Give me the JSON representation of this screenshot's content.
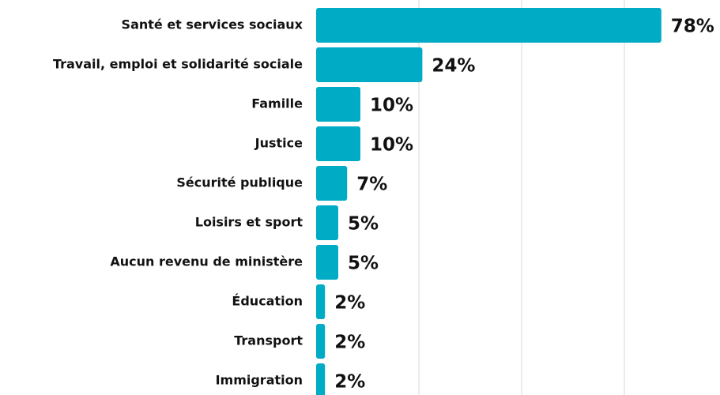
{
  "chart_data": {
    "type": "hbar",
    "categories": [
      "Santé et services sociaux",
      "Travail, emploi et solidarité sociale",
      "Famille",
      "Justice",
      "Sécurité publique",
      "Loisirs et sport",
      "Aucun revenu de ministère",
      "Éducation",
      "Transport",
      "Immigration"
    ],
    "values": [
      78,
      24,
      10,
      10,
      7,
      5,
      5,
      2,
      2,
      2
    ],
    "value_labels": [
      "78%",
      "24%",
      "10%",
      "10%",
      "7%",
      "5%",
      "5%",
      "2%",
      "2%",
      "2%"
    ],
    "color": "#00abc5",
    "xlim": [
      0,
      80
    ]
  }
}
